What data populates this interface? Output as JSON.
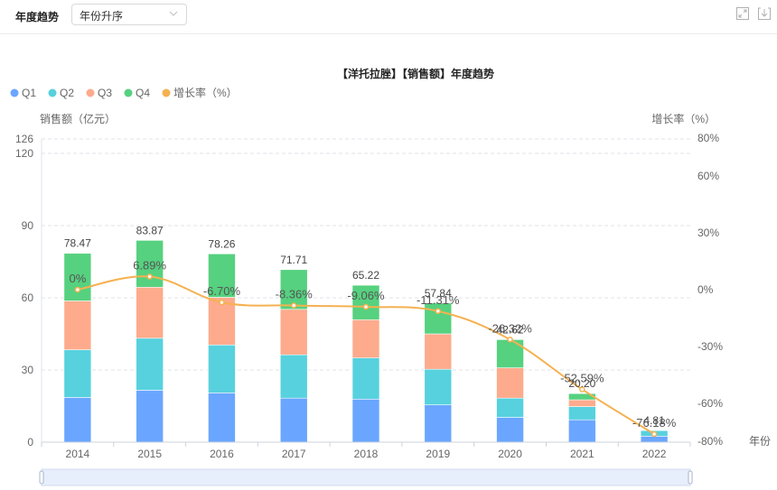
{
  "header": {
    "title": "年度趋势",
    "sort_select": {
      "value": "年份升序"
    },
    "icons": [
      "fullscreen-icon",
      "download-icon"
    ]
  },
  "chart_data": {
    "type": "bar",
    "stacked": true,
    "title": "【洋托拉脞】【销售额】年度趋势",
    "xlabel": "年份",
    "ylabel": "销售额（亿元）",
    "y2label": "增长率（%）",
    "categories": [
      "2014",
      "2015",
      "2016",
      "2017",
      "2018",
      "2019",
      "2020",
      "2021",
      "2022"
    ],
    "ylim": [
      0,
      126
    ],
    "yticks": [
      0,
      30,
      60,
      90,
      120,
      126
    ],
    "y2lim": [
      -80,
      80
    ],
    "y2ticks": [
      -80,
      -60,
      -30,
      0,
      30,
      60,
      80
    ],
    "y2tick_labels": [
      "-80%",
      "-60%",
      "-30%",
      "0%",
      "30%",
      "60%",
      "80%"
    ],
    "series": [
      {
        "name": "Q1",
        "color": "#6aa6ff",
        "values": [
          18.6,
          21.6,
          20.5,
          18.3,
          17.9,
          15.5,
          10.3,
          9.3,
          2.5
        ]
      },
      {
        "name": "Q2",
        "color": "#57d1de",
        "values": [
          19.8,
          21.6,
          19.9,
          18.0,
          17.1,
          14.8,
          8.0,
          5.5,
          2.31
        ]
      },
      {
        "name": "Q3",
        "color": "#fdab8c",
        "values": [
          20.3,
          21.2,
          19.8,
          18.9,
          15.9,
          14.7,
          12.6,
          2.8,
          0
        ]
      },
      {
        "name": "Q4",
        "color": "#56d17f",
        "values": [
          19.77,
          19.47,
          18.06,
          16.51,
          14.32,
          12.84,
          11.72,
          2.6,
          0
        ]
      }
    ],
    "totals": [
      78.47,
      83.87,
      78.26,
      71.71,
      65.22,
      57.84,
      42.62,
      20.2,
      4.81
    ],
    "total_labels": [
      "78.47",
      "83.87",
      "78.26",
      "71.71",
      "65.22",
      "57.84",
      "42.62",
      "20.20",
      "4.81"
    ],
    "line_series": {
      "name": "增长率（%）",
      "color": "#f5b150",
      "axis": "right",
      "values": [
        0,
        6.89,
        -6.7,
        -8.36,
        -9.06,
        -11.31,
        -26.32,
        -52.59,
        -76.18
      ],
      "labels": [
        "0%",
        "6.89%",
        "-6.70%",
        "-8.36%",
        "-9.06%",
        "-11.31%",
        "-26.32%",
        "-52.59%",
        "-76.18%"
      ]
    },
    "legend": [
      "Q1",
      "Q2",
      "Q3",
      "Q4",
      "增长率（%）"
    ],
    "legend_position": "top-left",
    "grid": true,
    "datazoom": {
      "start": 0,
      "end": 100
    }
  }
}
